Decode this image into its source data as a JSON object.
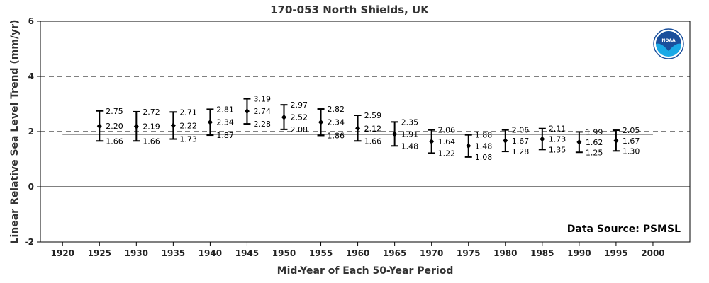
{
  "chart_data": {
    "type": "scatter",
    "title": "170-053 North Shields, UK",
    "xlabel": "Mid-Year of Each 50-Year Period",
    "ylabel": "Linear Relative Sea Level Trend (mm/yr)",
    "xlim": [
      1917,
      2005
    ],
    "ylim": [
      -2,
      6
    ],
    "x_ticks": [
      "1920",
      "1925",
      "1930",
      "1935",
      "1940",
      "1945",
      "1950",
      "1955",
      "1960",
      "1965",
      "1970",
      "1975",
      "1980",
      "1985",
      "1990",
      "1995",
      "2000"
    ],
    "y_ticks": [
      "-2",
      "0",
      "2",
      "4",
      "6"
    ],
    "source": "Data Source: PSMSL",
    "logo": "NOAA",
    "reference_lines": {
      "dashed": [
        2,
        4
      ],
      "solid": [
        0
      ],
      "trend_line": 1.9
    },
    "points": [
      {
        "x": 1925,
        "y": 2.2,
        "upper": 2.75,
        "lower": 1.66,
        "y_label": "2.20",
        "upper_label": "2.75",
        "lower_label": "1.66"
      },
      {
        "x": 1930,
        "y": 2.19,
        "upper": 2.72,
        "lower": 1.66,
        "y_label": "2.19",
        "upper_label": "2.72",
        "lower_label": "1.66"
      },
      {
        "x": 1935,
        "y": 2.22,
        "upper": 2.71,
        "lower": 1.73,
        "y_label": "2.22",
        "upper_label": "2.71",
        "lower_label": "1.73"
      },
      {
        "x": 1940,
        "y": 2.34,
        "upper": 2.81,
        "lower": 1.87,
        "y_label": "2.34",
        "upper_label": "2.81",
        "lower_label": "1.87"
      },
      {
        "x": 1945,
        "y": 2.74,
        "upper": 3.19,
        "lower": 2.28,
        "y_label": "2.74",
        "upper_label": "3.19",
        "lower_label": "2.28"
      },
      {
        "x": 1950,
        "y": 2.52,
        "upper": 2.97,
        "lower": 2.08,
        "y_label": "2.52",
        "upper_label": "2.97",
        "lower_label": "2.08"
      },
      {
        "x": 1955,
        "y": 2.34,
        "upper": 2.82,
        "lower": 1.86,
        "y_label": "2.34",
        "upper_label": "2.82",
        "lower_label": "1.86"
      },
      {
        "x": 1960,
        "y": 2.12,
        "upper": 2.59,
        "lower": 1.66,
        "y_label": "2.12",
        "upper_label": "2.59",
        "lower_label": "1.66"
      },
      {
        "x": 1965,
        "y": 1.91,
        "upper": 2.35,
        "lower": 1.48,
        "y_label": "1.91",
        "upper_label": "2.35",
        "lower_label": "1.48"
      },
      {
        "x": 1970,
        "y": 1.64,
        "upper": 2.06,
        "lower": 1.22,
        "y_label": "1.64",
        "upper_label": "2.06",
        "lower_label": "1.22"
      },
      {
        "x": 1975,
        "y": 1.48,
        "upper": 1.88,
        "lower": 1.08,
        "y_label": "1.48",
        "upper_label": "1.88",
        "lower_label": "1.08"
      },
      {
        "x": 1980,
        "y": 1.67,
        "upper": 2.06,
        "lower": 1.28,
        "y_label": "1.67",
        "upper_label": "2.06",
        "lower_label": "1.28"
      },
      {
        "x": 1985,
        "y": 1.73,
        "upper": 2.11,
        "lower": 1.35,
        "y_label": "1.73",
        "upper_label": "2.11",
        "lower_label": "1.35"
      },
      {
        "x": 1990,
        "y": 1.62,
        "upper": 1.99,
        "lower": 1.25,
        "y_label": "1.62",
        "upper_label": "1.99",
        "lower_label": "1.25"
      },
      {
        "x": 1995,
        "y": 1.67,
        "upper": 2.05,
        "lower": 1.3,
        "y_label": "1.67",
        "upper_label": "2.05",
        "lower_label": "1.30"
      }
    ],
    "colors": {
      "marker": "#000000",
      "logo_blue": "#1a4f9c",
      "logo_light": "#19a9e6"
    },
    "grid": false,
    "legend": "none"
  }
}
